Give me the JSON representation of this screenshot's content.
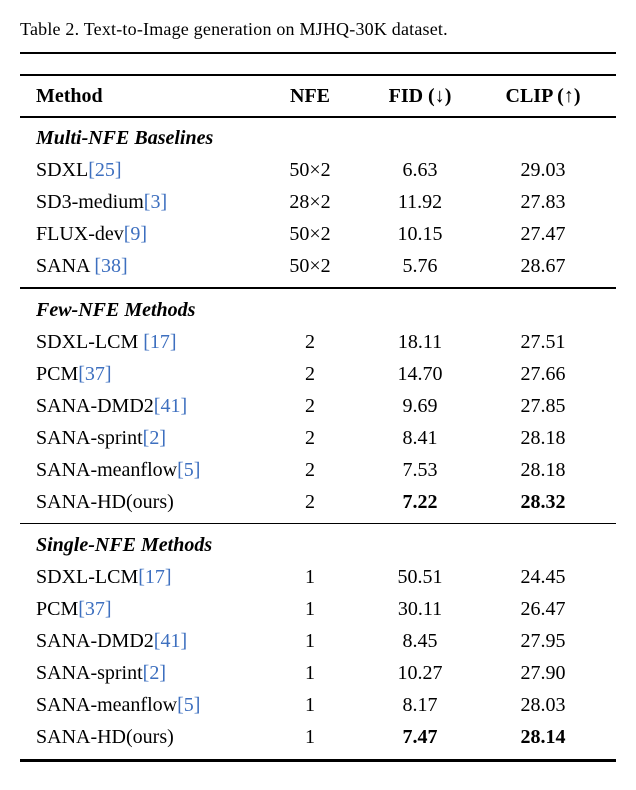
{
  "caption": "Table 2. Text-to-Image generation on MJHQ-30K dataset.",
  "colors": {
    "citation": "#3d6fbf"
  },
  "table": {
    "headers": {
      "method": "Method",
      "nfe": "NFE",
      "fid": "FID (↓)",
      "clip": "CLIP (↑)"
    },
    "sections": [
      {
        "title": "Multi-NFE Baselines",
        "rows": [
          {
            "method": "SDXL",
            "cite": "[25]",
            "nfe": "50×2",
            "fid": "6.63",
            "clip": "29.03",
            "bold": false
          },
          {
            "method": "SD3-medium",
            "cite": "[3]",
            "nfe": "28×2",
            "fid": "11.92",
            "clip": "27.83",
            "bold": false
          },
          {
            "method": "FLUX-dev",
            "cite": "[9]",
            "nfe": "50×2",
            "fid": "10.15",
            "clip": "27.47",
            "bold": false
          },
          {
            "method": "SANA ",
            "cite": "[38]",
            "nfe": "50×2",
            "fid": "5.76",
            "clip": "28.67",
            "bold": false
          }
        ]
      },
      {
        "title": "Few-NFE Methods",
        "rows": [
          {
            "method": "SDXL-LCM ",
            "cite": "[17]",
            "nfe": "2",
            "fid": "18.11",
            "clip": "27.51",
            "bold": false
          },
          {
            "method": "PCM",
            "cite": "[37]",
            "nfe": "2",
            "fid": "14.70",
            "clip": "27.66",
            "bold": false
          },
          {
            "method": "SANA-DMD2",
            "cite": "[41]",
            "nfe": "2",
            "fid": "9.69",
            "clip": "27.85",
            "bold": false
          },
          {
            "method": "SANA-sprint",
            "cite": "[2]",
            "nfe": "2",
            "fid": "8.41",
            "clip": "28.18",
            "bold": false
          },
          {
            "method": "SANA-meanflow",
            "cite": "[5]",
            "nfe": "2",
            "fid": "7.53",
            "clip": "28.18",
            "bold": false
          },
          {
            "method": "SANA-HD(ours)",
            "cite": "",
            "nfe": "2",
            "fid": "7.22",
            "clip": "28.32",
            "bold": true
          }
        ]
      },
      {
        "title": "Single-NFE Methods",
        "rows": [
          {
            "method": "SDXL-LCM",
            "cite": "[17]",
            "nfe": "1",
            "fid": "50.51",
            "clip": "24.45",
            "bold": false
          },
          {
            "method": "PCM",
            "cite": "[37]",
            "nfe": "1",
            "fid": "30.11",
            "clip": "26.47",
            "bold": false
          },
          {
            "method": "SANA-DMD2",
            "cite": "[41]",
            "nfe": "1",
            "fid": "8.45",
            "clip": "27.95",
            "bold": false
          },
          {
            "method": "SANA-sprint",
            "cite": "[2]",
            "nfe": "1",
            "fid": "10.27",
            "clip": "27.90",
            "bold": false
          },
          {
            "method": "SANA-meanflow",
            "cite": "[5]",
            "nfe": "1",
            "fid": "8.17",
            "clip": "28.03",
            "bold": false
          },
          {
            "method": "SANA-HD(ours)",
            "cite": "",
            "nfe": "1",
            "fid": "7.47",
            "clip": "28.14",
            "bold": true
          }
        ]
      }
    ]
  }
}
